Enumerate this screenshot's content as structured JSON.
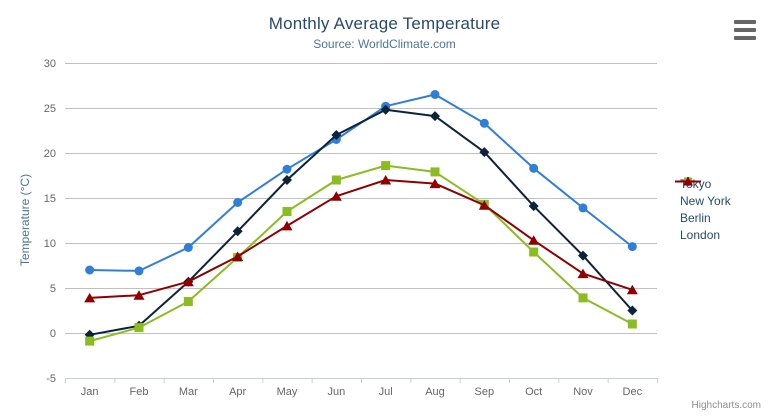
{
  "credits": "Highcharts.com",
  "export_menu_icon": "hamburger-menu-icon",
  "colors": {
    "title_text": "#274b6d",
    "subtitle_text": "#4d759e",
    "axis_label_text": "#666666",
    "axis_title_text": "#4d759e",
    "legend_text": "#274b6d",
    "gridline": "#c0c0c0",
    "axis_line": "#c0d0e0",
    "credits_text": "#909090"
  },
  "chart_data": {
    "type": "line",
    "title": "Monthly Average Temperature",
    "subtitle": "Source: WorldClimate.com",
    "categories": [
      "Jan",
      "Feb",
      "Mar",
      "Apr",
      "May",
      "Jun",
      "Jul",
      "Aug",
      "Sep",
      "Oct",
      "Nov",
      "Dec"
    ],
    "series": [
      {
        "name": "Tokyo",
        "color": "#2f7ed8",
        "marker": "circle",
        "values": [
          7.0,
          6.9,
          9.5,
          14.5,
          18.2,
          21.5,
          25.2,
          26.5,
          23.3,
          18.3,
          13.9,
          9.6
        ]
      },
      {
        "name": "New York",
        "color": "#0d233a",
        "marker": "diamond",
        "values": [
          -0.2,
          0.8,
          5.7,
          11.3,
          17.0,
          22.0,
          24.8,
          24.1,
          20.1,
          14.1,
          8.6,
          2.5
        ]
      },
      {
        "name": "Berlin",
        "color": "#8bbc21",
        "marker": "square",
        "values": [
          -0.9,
          0.6,
          3.5,
          8.4,
          13.5,
          17.0,
          18.6,
          17.9,
          14.3,
          9.0,
          3.9,
          1.0
        ]
      },
      {
        "name": "London",
        "color": "#910000",
        "marker": "triangle",
        "values": [
          3.9,
          4.2,
          5.7,
          8.5,
          11.9,
          15.2,
          17.0,
          16.6,
          14.2,
          10.3,
          6.6,
          4.8
        ]
      }
    ],
    "xlabel": "",
    "ylabel": "Temperature (°C)",
    "ylim": [
      -5,
      30
    ],
    "ytick_step": 5,
    "yticks": [
      -5,
      0,
      5,
      10,
      15,
      20,
      25,
      30
    ],
    "grid": true,
    "legend_position": "right"
  }
}
